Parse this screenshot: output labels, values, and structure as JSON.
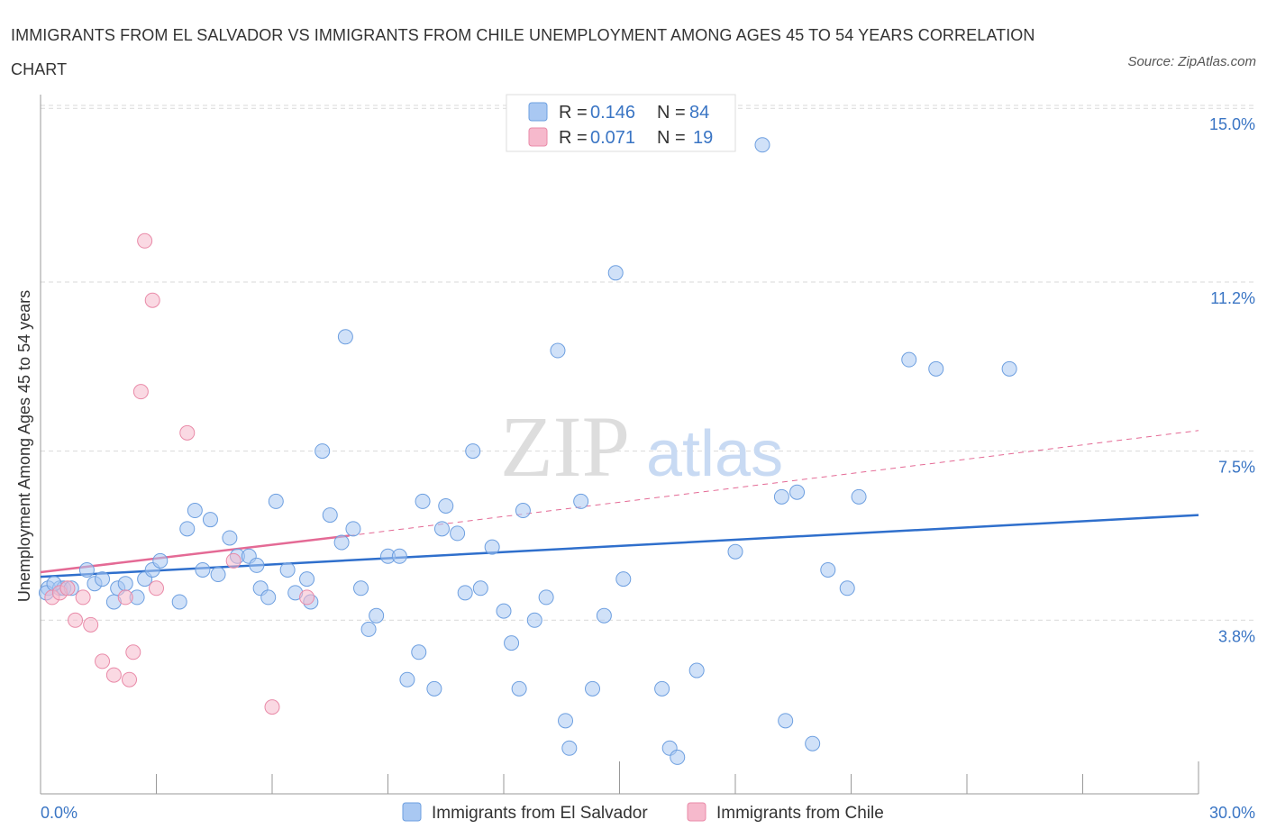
{
  "title": "IMMIGRANTS FROM EL SALVADOR VS IMMIGRANTS FROM CHILE UNEMPLOYMENT AMONG AGES 45 TO 54 YEARS CORRELATION CHART",
  "source": "Source: ZipAtlas.com",
  "watermark": {
    "zip": "ZIP",
    "atlas": "atlas"
  },
  "legend": {
    "rows": [
      {
        "r_label": "R = ",
        "r_value": "0.146",
        "n_label": "N = ",
        "n_value": "84",
        "color": "#a9c8f2"
      },
      {
        "r_label": "R = ",
        "r_value": "0.071",
        "n_label": "N = ",
        "n_value": "19",
        "color": "#f6b9cc"
      }
    ]
  },
  "colors": {
    "blue_fill": "#a9c8f2",
    "blue_stroke": "#6d9fe0",
    "blue_line": "#2f6fcc",
    "pink_fill": "#f6b9cc",
    "pink_stroke": "#e98aa8",
    "pink_line": "#e46a95",
    "grid": "#d9d9d9",
    "tick_text": "#3a75c4"
  },
  "chart_data": {
    "type": "scatter",
    "xlabel": "",
    "ylabel": "Unemployment Among Ages 45 to 54 years",
    "xlim": [
      0,
      30
    ],
    "ylim": [
      0,
      15.3
    ],
    "x_tick_labels": [
      {
        "value": 0,
        "label": "0.0%"
      },
      {
        "value": 30,
        "label": "30.0%"
      }
    ],
    "y_tick_labels": [
      {
        "value": 3.8,
        "label": "3.8%"
      },
      {
        "value": 7.5,
        "label": "7.5%"
      },
      {
        "value": 11.2,
        "label": "11.2%"
      },
      {
        "value": 15.0,
        "label": "15.0%"
      }
    ],
    "grid": "horizontal dashed",
    "legend_position": "top-center and bottom",
    "series": [
      {
        "name": "Immigrants from El Salvador",
        "color": "#a9c8f2",
        "points": [
          [
            0.2,
            4.5
          ],
          [
            0.5,
            4.5
          ],
          [
            0.6,
            4.5
          ],
          [
            0.8,
            4.5
          ],
          [
            1.2,
            4.9
          ],
          [
            1.4,
            4.6
          ],
          [
            1.6,
            4.7
          ],
          [
            1.9,
            4.2
          ],
          [
            2.0,
            4.5
          ],
          [
            2.2,
            4.6
          ],
          [
            2.5,
            4.3
          ],
          [
            2.7,
            4.7
          ],
          [
            2.9,
            4.9
          ],
          [
            3.1,
            5.1
          ],
          [
            3.6,
            4.2
          ],
          [
            3.8,
            5.8
          ],
          [
            4.0,
            6.2
          ],
          [
            4.2,
            4.9
          ],
          [
            4.4,
            6.0
          ],
          [
            4.6,
            4.8
          ],
          [
            4.9,
            5.6
          ],
          [
            5.1,
            5.2
          ],
          [
            5.4,
            5.2
          ],
          [
            5.6,
            5.0
          ],
          [
            5.7,
            4.5
          ],
          [
            5.9,
            4.3
          ],
          [
            6.1,
            6.4
          ],
          [
            6.4,
            4.9
          ],
          [
            6.6,
            4.4
          ],
          [
            6.9,
            4.7
          ],
          [
            7.0,
            4.2
          ],
          [
            7.3,
            7.5
          ],
          [
            7.5,
            6.1
          ],
          [
            7.8,
            5.5
          ],
          [
            7.9,
            10.0
          ],
          [
            8.1,
            5.8
          ],
          [
            8.3,
            4.5
          ],
          [
            8.5,
            3.6
          ],
          [
            8.7,
            3.9
          ],
          [
            9.0,
            5.2
          ],
          [
            9.3,
            5.2
          ],
          [
            9.5,
            2.5
          ],
          [
            9.8,
            3.1
          ],
          [
            9.9,
            6.4
          ],
          [
            10.2,
            2.3
          ],
          [
            10.4,
            5.8
          ],
          [
            10.5,
            6.3
          ],
          [
            10.8,
            5.7
          ],
          [
            11.0,
            4.4
          ],
          [
            11.2,
            7.5
          ],
          [
            11.4,
            4.5
          ],
          [
            11.7,
            5.4
          ],
          [
            12.0,
            4.0
          ],
          [
            12.2,
            3.3
          ],
          [
            12.4,
            2.3
          ],
          [
            12.5,
            6.2
          ],
          [
            12.8,
            3.8
          ],
          [
            13.1,
            4.3
          ],
          [
            13.4,
            9.7
          ],
          [
            13.6,
            1.6
          ],
          [
            13.7,
            1.0
          ],
          [
            14.0,
            6.4
          ],
          [
            14.3,
            2.3
          ],
          [
            14.6,
            3.9
          ],
          [
            14.9,
            11.4
          ],
          [
            15.1,
            4.7
          ],
          [
            16.1,
            2.3
          ],
          [
            16.3,
            1.0
          ],
          [
            16.5,
            0.8
          ],
          [
            17.0,
            2.7
          ],
          [
            18.0,
            5.3
          ],
          [
            18.7,
            14.2
          ],
          [
            19.2,
            6.5
          ],
          [
            19.3,
            1.6
          ],
          [
            19.6,
            6.6
          ],
          [
            20.0,
            1.1
          ],
          [
            20.4,
            4.9
          ],
          [
            20.9,
            4.5
          ],
          [
            21.2,
            6.5
          ],
          [
            22.5,
            9.5
          ],
          [
            23.2,
            9.3
          ],
          [
            25.1,
            9.3
          ],
          [
            0.15,
            4.4
          ],
          [
            0.35,
            4.6
          ]
        ]
      },
      {
        "name": "Immigrants from Chile",
        "color": "#f6b9cc",
        "points": [
          [
            0.3,
            4.3
          ],
          [
            0.5,
            4.4
          ],
          [
            0.7,
            4.5
          ],
          [
            0.9,
            3.8
          ],
          [
            1.1,
            4.3
          ],
          [
            1.3,
            3.7
          ],
          [
            1.6,
            2.9
          ],
          [
            1.9,
            2.6
          ],
          [
            2.2,
            4.3
          ],
          [
            2.3,
            2.5
          ],
          [
            2.4,
            3.1
          ],
          [
            2.6,
            8.8
          ],
          [
            2.7,
            12.1
          ],
          [
            2.9,
            10.8
          ],
          [
            3.0,
            4.5
          ],
          [
            3.8,
            7.9
          ],
          [
            5.0,
            5.1
          ],
          [
            6.0,
            1.9
          ],
          [
            6.9,
            4.3
          ]
        ]
      }
    ],
    "trendlines": [
      {
        "series": "Immigrants from El Salvador",
        "x": [
          0,
          30
        ],
        "y": [
          4.75,
          6.1
        ],
        "style": "solid"
      },
      {
        "series": "Immigrants from Chile",
        "x": [
          0,
          8.0
        ],
        "y": [
          4.85,
          5.65
        ],
        "style": "solid"
      },
      {
        "series": "Immigrants from Chile",
        "x": [
          8.0,
          30
        ],
        "y": [
          5.65,
          7.95
        ],
        "style": "dashed"
      }
    ]
  }
}
